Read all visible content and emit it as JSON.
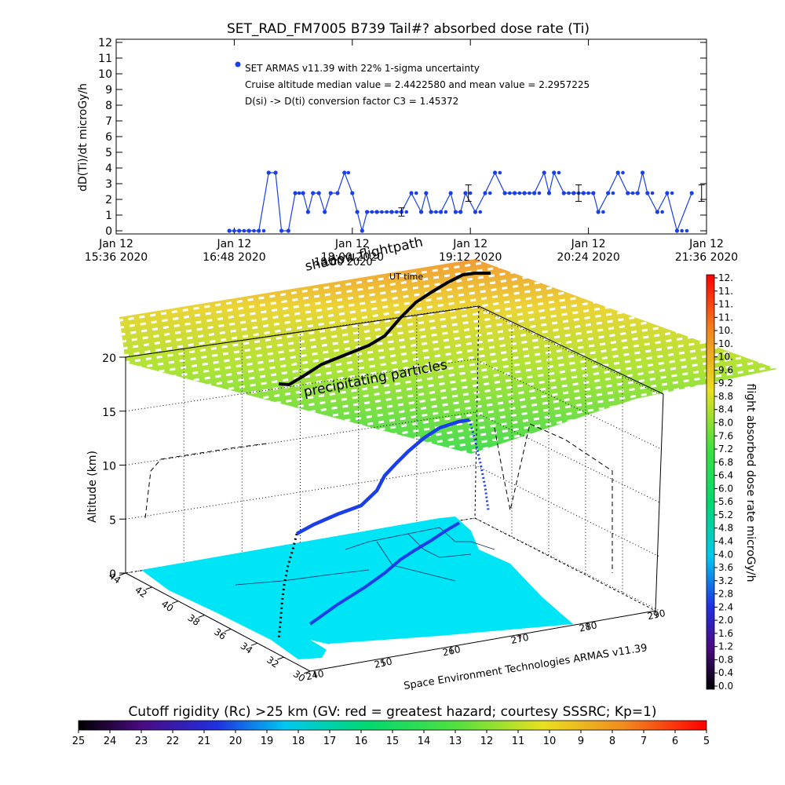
{
  "chart_data": [
    {
      "type": "scatter",
      "title": "SET_RAD_FM7005  B739 Tail#? absorbed dose rate (Ti)",
      "ylabel": "dD(Ti)/dt microGy/h",
      "xlabel": "UT time",
      "ylim": [
        0,
        12
      ],
      "y_ticks": [
        "0",
        "1",
        "2",
        "3",
        "4",
        "5",
        "6",
        "7",
        "8",
        "9",
        "10",
        "11",
        "12"
      ],
      "x_ticks": [
        {
          "line1": "Jan 12",
          "line2": "15:36 2020"
        },
        {
          "line1": "Jan 12",
          "line2": "16:48 2020"
        },
        {
          "line1": "Jan 12",
          "line2": "18:00 2020"
        },
        {
          "line1": "Jan 12",
          "line2": "19:12 2020"
        },
        {
          "line1": "Jan 12",
          "line2": "20:24 2020"
        },
        {
          "line1": "Jan 12",
          "line2": "21:36 2020"
        }
      ],
      "xlim_hours": [
        15.6,
        21.6
      ],
      "legend": {
        "placement": "top-left",
        "lines": [
          "SET ARMAS v11.39 with 22% 1-sigma uncertainty",
          "Cruise altitude median value = 2.4422580 and mean value = 2.2957225",
          "D(si) -> D(ti) conversion factor C3 = 1.45372"
        ]
      },
      "series": [
        {
          "color": "#1a3fe6",
          "x_hours": [
            16.75,
            16.85,
            16.95,
            17.05,
            17.15,
            17.22,
            17.28,
            17.35,
            17.42,
            17.5,
            17.55,
            17.6,
            17.66,
            17.72,
            17.78,
            17.85,
            17.92,
            18.0,
            18.05,
            18.1,
            18.15,
            18.25,
            18.4,
            18.5,
            18.6,
            18.7,
            18.75,
            18.8,
            18.9,
            19.0,
            19.05,
            19.1,
            19.15,
            19.25,
            19.35,
            19.45,
            19.55,
            19.65,
            19.75,
            19.85,
            19.95,
            20.0,
            20.05,
            20.15,
            20.25,
            20.35,
            20.45,
            20.5,
            20.6,
            20.7,
            20.8,
            20.9,
            20.95,
            21.0,
            21.1,
            21.2,
            21.3,
            21.45
          ],
          "values": [
            0,
            0,
            0,
            0,
            3.7,
            3.7,
            0,
            0,
            2.4,
            2.4,
            1.2,
            2.4,
            2.4,
            1.2,
            2.4,
            2.4,
            3.7,
            2.4,
            1.2,
            0,
            1.2,
            1.2,
            1.2,
            1.2,
            2.4,
            1.2,
            2.4,
            1.2,
            1.2,
            2.4,
            1.2,
            1.2,
            2.4,
            1.2,
            2.4,
            3.7,
            2.4,
            2.4,
            2.4,
            2.4,
            3.7,
            2.4,
            3.7,
            2.4,
            2.4,
            2.4,
            2.4,
            1.2,
            2.4,
            3.7,
            2.4,
            2.4,
            3.7,
            2.4,
            1.2,
            2.4,
            0,
            2.4
          ]
        }
      ],
      "error_bars_hours": [
        18.5,
        19.18,
        20.3,
        21.55
      ]
    },
    {
      "type": "scatter",
      "subtype": "3d-flightpath",
      "zlabel": "Altitude (km)",
      "z_ticks": [
        "0",
        "5",
        "10",
        "15",
        "20"
      ],
      "zlim": [
        0,
        20
      ],
      "lat_ticks": [
        "44",
        "42",
        "40",
        "38",
        "36",
        "34",
        "32",
        "30"
      ],
      "lon_ticks": [
        "240",
        "250",
        "260",
        "270",
        "280",
        "290"
      ],
      "credit": "Space Environment Technologies ARMAS v11.39",
      "annotations": [
        "shadow flightpath",
        "precipitating particles",
        "UT time",
        "18:00 2020"
      ],
      "colorbar_dose": {
        "label": "flight absorbed dose rate microGy/h",
        "ticks": [
          "12.",
          "11.",
          "11.",
          "11.",
          "10.",
          "10.",
          "10.",
          "9.6",
          "9.2",
          "8.8",
          "8.4",
          "8.0",
          "7.6",
          "7.2",
          "6.8",
          "6.4",
          "6.0",
          "5.6",
          "5.2",
          "4.8",
          "4.4",
          "4.0",
          "3.6",
          "3.2",
          "2.8",
          "2.4",
          "2.0",
          "1.6",
          "1.2",
          "0.8",
          "0.4",
          "0.0"
        ]
      },
      "colorbar_cutoff": {
        "label": "Cutoff rigidity (Rc) >25 km (GV: red = greatest hazard; courtesy SSSRC; Kp=1)",
        "ticks": [
          "25",
          "24",
          "23",
          "22",
          "21",
          "20",
          "19",
          "18",
          "17",
          "16",
          "15",
          "14",
          "13",
          "12",
          "11",
          "10",
          "9",
          "8",
          "7",
          "6",
          "5"
        ]
      }
    }
  ],
  "colors": {
    "dose_points": "#1a3fe6",
    "ground_map": "#00e5f5",
    "particles_low": "#40d840",
    "particles_high": "#f08a20"
  }
}
